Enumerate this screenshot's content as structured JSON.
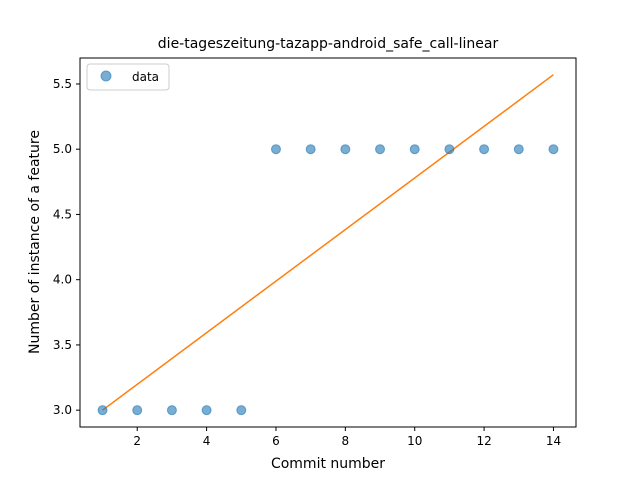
{
  "chart_data": {
    "type": "scatter",
    "title": "die-tageszeitung-tazapp-android_safe_call-linear",
    "xlabel": "Commit number",
    "ylabel": "Number of instance of a feature",
    "xlim": [
      0.35,
      14.65
    ],
    "ylim": [
      2.871,
      5.699
    ],
    "xticks": [
      2,
      4,
      6,
      8,
      10,
      12,
      14
    ],
    "yticks": [
      3.0,
      3.5,
      4.0,
      4.5,
      5.0,
      5.5
    ],
    "ytick_labels": [
      "3.0",
      "3.5",
      "4.0",
      "4.5",
      "5.0",
      "5.5"
    ],
    "grid": false,
    "legend_position": "top-left",
    "series": [
      {
        "name": "data",
        "kind": "scatter",
        "color": "#1f77b4",
        "x": [
          1,
          2,
          3,
          4,
          5,
          6,
          7,
          8,
          9,
          10,
          11,
          12,
          13,
          14
        ],
        "y": [
          3,
          3,
          3,
          3,
          3,
          5,
          5,
          5,
          5,
          5,
          5,
          5,
          5,
          5
        ]
      },
      {
        "kind": "line",
        "color": "#ff7f0e",
        "x": [
          1,
          14
        ],
        "y": [
          3.0,
          5.571
        ]
      }
    ]
  }
}
